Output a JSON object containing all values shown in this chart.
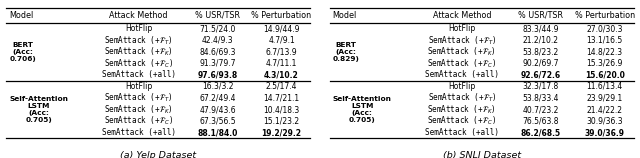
{
  "figsize": [
    6.4,
    1.58
  ],
  "dpi": 100,
  "tables": [
    {
      "title": "(a) Yelp Dataset",
      "col_headers": [
        "Model",
        "Attack Method",
        "% USR/TSR",
        "% Perturbation"
      ],
      "sections": [
        {
          "model": "BERT\n(Acc:\n0.706)",
          "rows": [
            [
              "HotFlip",
              "71.5/24.0",
              "14.9/44.9",
              false
            ],
            [
              "SemAttack (+$\\mathcal{F}_T$)",
              "42.4/9.3",
              "4.7/9.1",
              false
            ],
            [
              "SemAttack (+$\\mathcal{F}_K$)",
              "84.6/69.3",
              "6.7/13.9",
              false
            ],
            [
              "SemAttack (+$\\mathcal{F}_C$)",
              "91.3/79.7",
              "4.7/11.1",
              false
            ],
            [
              "SemAttack (+all)",
              "97.6/93.8",
              "4.3/10.2",
              true
            ]
          ]
        },
        {
          "model": "Self-Attention\nLSTM\n(Acc:\n0.705)",
          "rows": [
            [
              "HotFlip",
              "16.3/3.2",
              "2.5/17.4",
              false
            ],
            [
              "SemAttack (+$\\mathcal{F}_T$)",
              "67.2/49.4",
              "14.7/21.1",
              false
            ],
            [
              "SemAttack (+$\\mathcal{F}_K$)",
              "47.9/43.6",
              "10.4/18.3",
              false
            ],
            [
              "SemAttack (+$\\mathcal{F}_C$)",
              "67.3/56.5",
              "15.1/23.2",
              false
            ],
            [
              "SemAttack (+all)",
              "88.1/84.0",
              "19.2/29.2",
              true
            ]
          ]
        }
      ]
    },
    {
      "title": "(b) SNLI Dataset",
      "col_headers": [
        "Model",
        "Attack Method",
        "% USR/TSR",
        "% Perturbation"
      ],
      "sections": [
        {
          "model": "BERT\n(Acc:\n0.829)",
          "rows": [
            [
              "HotFlip",
              "83.3/44.9",
              "27.0/30.3",
              false
            ],
            [
              "SemAttack (+$\\mathcal{F}_T$)",
              "21.2/10.2",
              "13.1/16.5",
              false
            ],
            [
              "SemAttack (+$\\mathcal{F}_K$)",
              "53.8/23.2",
              "14.8/22.3",
              false
            ],
            [
              "SemAttack (+$\\mathcal{F}_C$)",
              "90.2/69.7",
              "15.3/26.9",
              false
            ],
            [
              "SemAttack (+all)",
              "92.6/72.6",
              "15.6/20.0",
              true
            ]
          ]
        },
        {
          "model": "Self-Attention\nLSTM\n(Acc:\n0.705)",
          "rows": [
            [
              "HotFlip",
              "32.3/17.8",
              "11.6/13.4",
              false
            ],
            [
              "SemAttack (+$\\mathcal{F}_T$)",
              "53.8/33.4",
              "23.9/29.1",
              false
            ],
            [
              "SemAttack (+$\\mathcal{F}_K$)",
              "40.7/23.2",
              "21.4/22.2",
              false
            ],
            [
              "SemAttack (+$\\mathcal{F}_C$)",
              "76.5/63.8",
              "30.9/36.3",
              false
            ],
            [
              "SemAttack (+all)",
              "86.2/68.5",
              "39.0/36.9",
              true
            ]
          ]
        }
      ]
    }
  ]
}
